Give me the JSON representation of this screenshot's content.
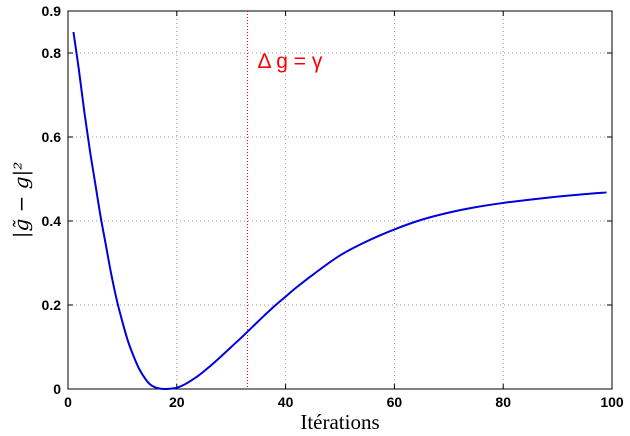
{
  "chart_data": {
    "type": "line",
    "xlabel": "Itérations",
    "ylabel": "|g̃ − g|²",
    "xlim": [
      0,
      100
    ],
    "ylim": [
      0,
      0.9
    ],
    "xticks": [
      0,
      20,
      40,
      60,
      80,
      100
    ],
    "yticks": [
      0,
      0.2,
      0.4,
      0.6,
      0.8,
      0.9
    ],
    "xtick_labels": [
      "0",
      "20",
      "40",
      "60",
      "80",
      "100"
    ],
    "ytick_labels": [
      "0",
      "0.2",
      "0.4",
      "0.6",
      "0.8",
      "0.9"
    ],
    "grid": true,
    "series": [
      {
        "color": "#0000dd",
        "x": [
          1,
          2,
          3,
          4,
          5,
          6,
          7,
          8,
          9,
          10,
          11,
          12,
          13,
          14,
          15,
          16,
          17,
          18,
          19,
          20,
          21,
          22,
          24,
          26,
          28,
          30,
          32,
          34,
          36,
          38,
          40,
          42,
          45,
          50,
          55,
          60,
          65,
          70,
          75,
          80,
          85,
          90,
          95,
          99
        ],
        "y": [
          0.85,
          0.76,
          0.66,
          0.57,
          0.49,
          0.41,
          0.34,
          0.27,
          0.21,
          0.16,
          0.115,
          0.08,
          0.05,
          0.028,
          0.012,
          0.004,
          0.0005,
          0.0,
          0.0008,
          0.003,
          0.008,
          0.015,
          0.032,
          0.053,
          0.076,
          0.1,
          0.124,
          0.149,
          0.174,
          0.198,
          0.22,
          0.242,
          0.272,
          0.318,
          0.352,
          0.38,
          0.403,
          0.42,
          0.433,
          0.443,
          0.451,
          0.458,
          0.464,
          0.468
        ]
      }
    ],
    "annotations": [
      {
        "text": "Δ g = γ",
        "x": 33,
        "color": "#ff0000",
        "style": "dotted-vertical-line"
      }
    ]
  }
}
